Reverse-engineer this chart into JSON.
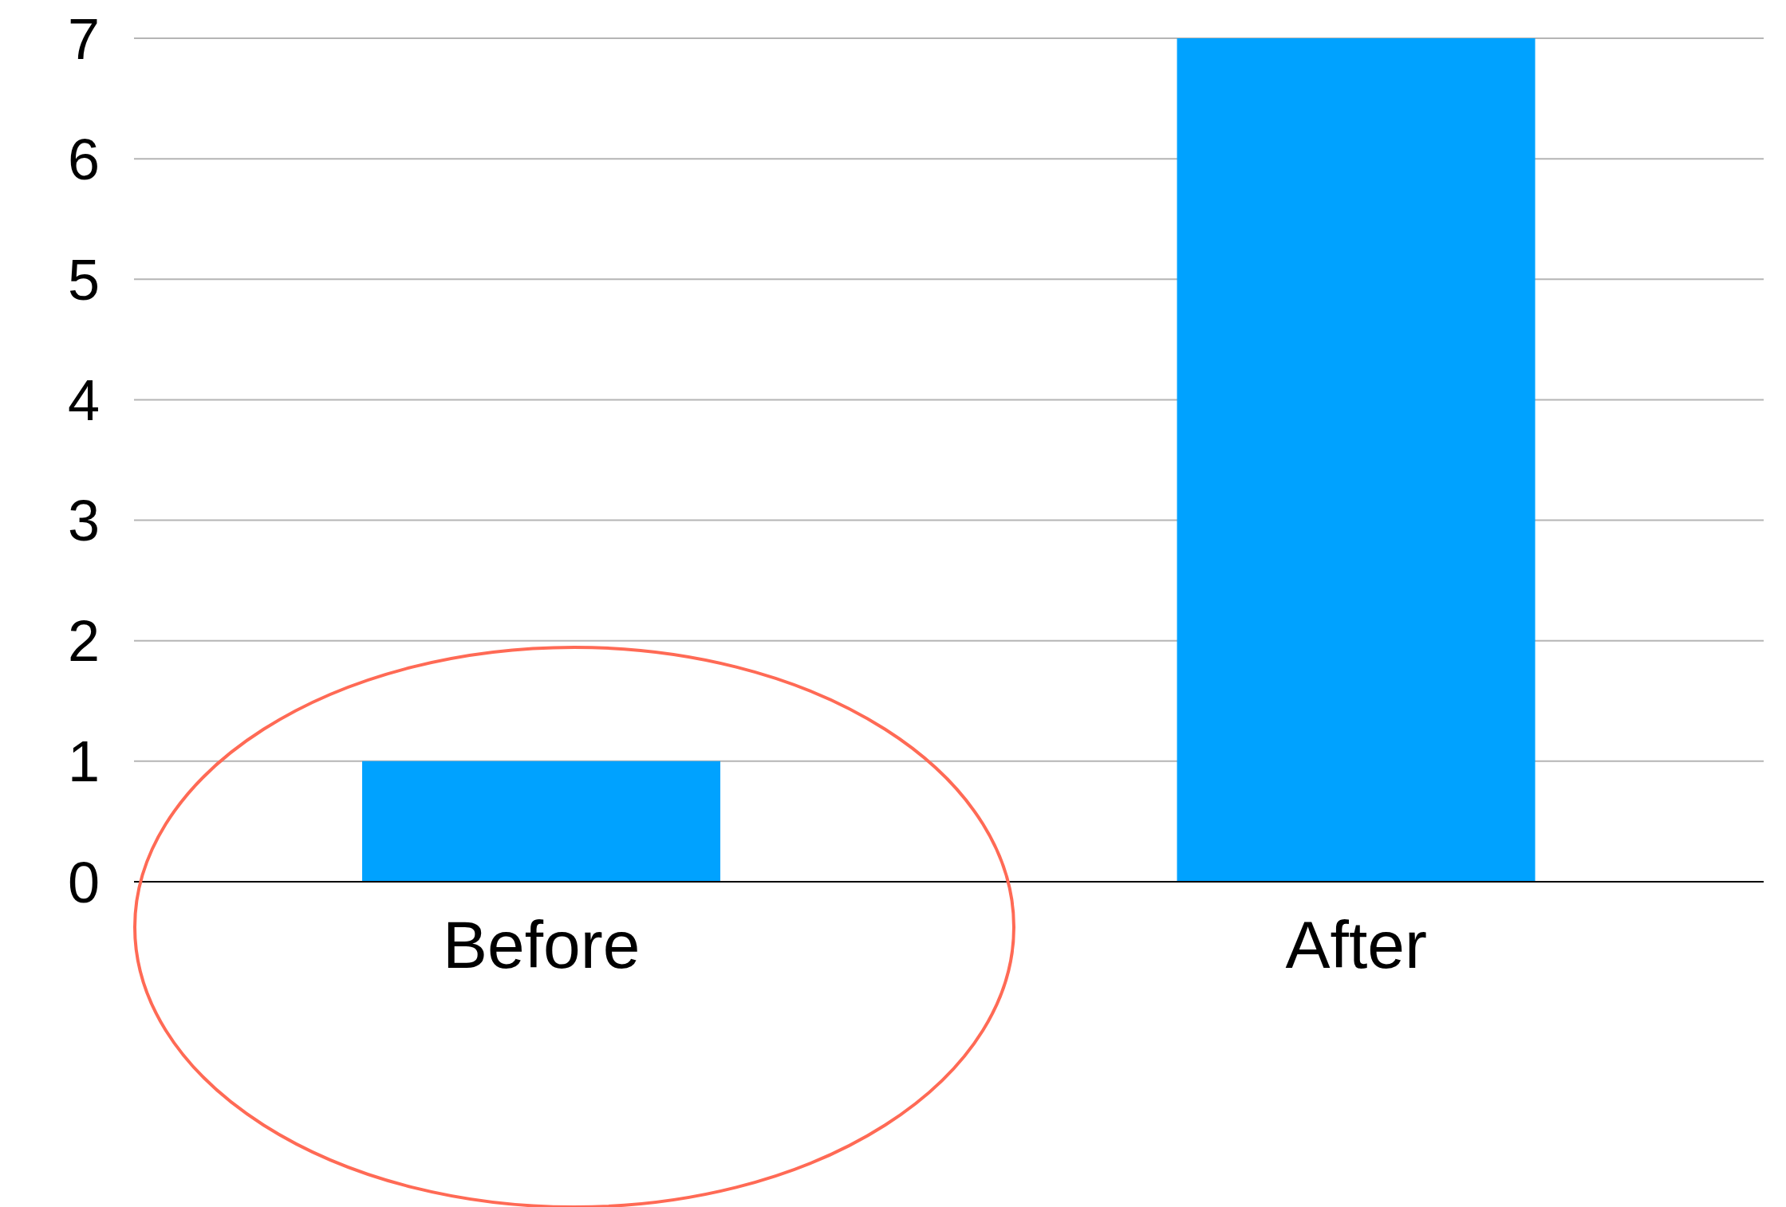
{
  "chart_data": {
    "type": "bar",
    "categories": [
      "Before",
      "After"
    ],
    "values": [
      1,
      7
    ],
    "color": "#00a2ff",
    "ylim": [
      0,
      7
    ],
    "yticks": [
      0,
      1,
      2,
      3,
      4,
      5,
      6,
      7
    ],
    "grid": "y"
  }
}
